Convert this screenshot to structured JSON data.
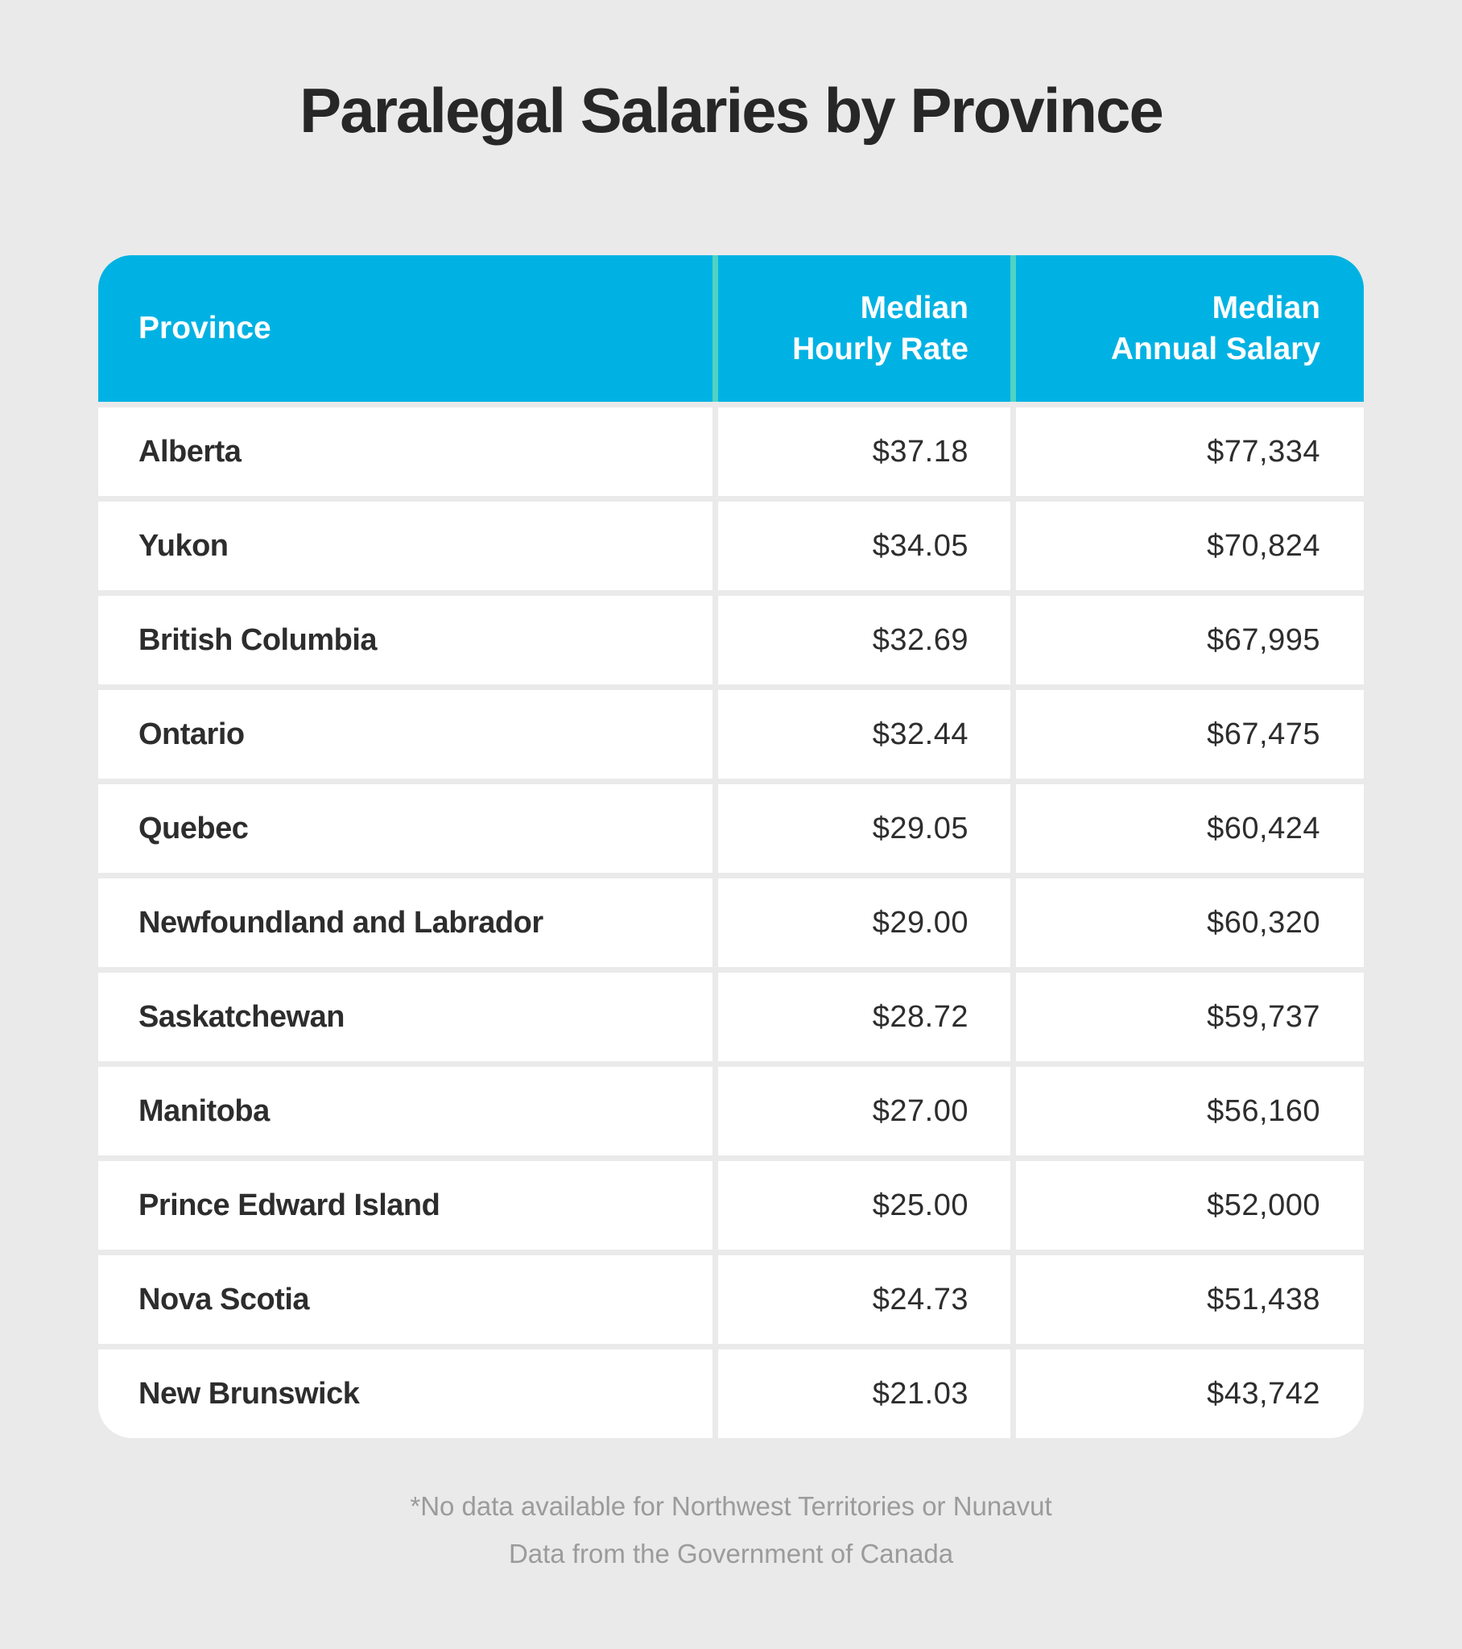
{
  "page": {
    "title": "Paralegal Salaries by Province"
  },
  "colors": {
    "page_background": "#eaeaea",
    "header_background": "#00b2e3",
    "header_divider": "#4fd3c2",
    "row_background": "#ffffff",
    "title_text": "#272727",
    "body_text": "#2d2d2d",
    "footer_text": "#9b9b9b"
  },
  "table": {
    "header": {
      "columns": [
        {
          "line1": "Province",
          "line2": ""
        },
        {
          "line1": "Median",
          "line2": "Hourly Rate"
        },
        {
          "line1": "Median",
          "line2": "Annual Salary"
        }
      ]
    },
    "rows": [
      {
        "province": "Alberta",
        "hourly": "$37.18",
        "annual": "$77,334"
      },
      {
        "province": "Yukon",
        "hourly": "$34.05",
        "annual": "$70,824"
      },
      {
        "province": "British Columbia",
        "hourly": "$32.69",
        "annual": "$67,995"
      },
      {
        "province": "Ontario",
        "hourly": "$32.44",
        "annual": "$67,475"
      },
      {
        "province": "Quebec",
        "hourly": "$29.05",
        "annual": "$60,424"
      },
      {
        "province": "Newfoundland and Labrador",
        "hourly": "$29.00",
        "annual": "$60,320"
      },
      {
        "province": "Saskatchewan",
        "hourly": "$28.72",
        "annual": "$59,737"
      },
      {
        "province": "Manitoba",
        "hourly": "$27.00",
        "annual": "$56,160"
      },
      {
        "province": "Prince Edward Island",
        "hourly": "$25.00",
        "annual": "$52,000"
      },
      {
        "province": "Nova Scotia",
        "hourly": "$24.73",
        "annual": "$51,438"
      },
      {
        "province": "New Brunswick",
        "hourly": "$21.03",
        "annual": "$43,742"
      }
    ]
  },
  "footnotes": [
    "*No data available for Northwest Territories or Nunavut",
    "Data from the Government of Canada"
  ],
  "chart_data": {
    "type": "table",
    "title": "Paralegal Salaries by Province",
    "columns": [
      "Province",
      "Median Hourly Rate",
      "Median Annual Salary"
    ],
    "rows": [
      [
        "Alberta",
        37.18,
        77334
      ],
      [
        "Yukon",
        34.05,
        70824
      ],
      [
        "British Columbia",
        32.69,
        67995
      ],
      [
        "Ontario",
        32.44,
        67475
      ],
      [
        "Quebec",
        29.05,
        60424
      ],
      [
        "Newfoundland and Labrador",
        29.0,
        60320
      ],
      [
        "Saskatchewan",
        28.72,
        59737
      ],
      [
        "Manitoba",
        27.0,
        56160
      ],
      [
        "Prince Edward Island",
        25.0,
        52000
      ],
      [
        "Nova Scotia",
        24.73,
        51438
      ],
      [
        "New Brunswick",
        21.03,
        43742
      ]
    ],
    "footnotes": [
      "*No data available for Northwest Territories or Nunavut",
      "Data from the Government of Canada"
    ],
    "sorted_by": "descending salary",
    "currency": "CAD"
  }
}
